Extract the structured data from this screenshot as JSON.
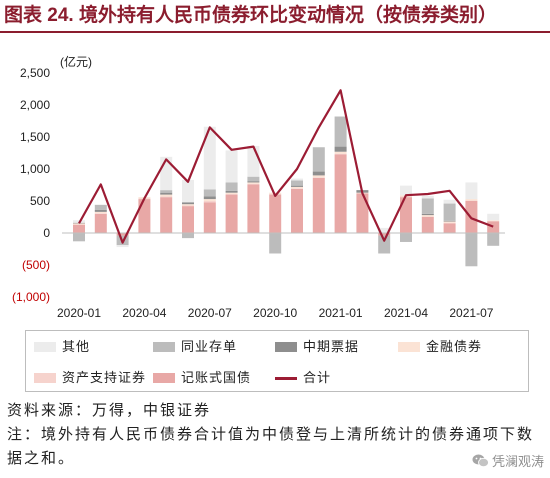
{
  "chart_data": {
    "type": "bar",
    "stacked": true,
    "title": "图表 24. 境外持有人民币债券环比变动情况（按债券类别）",
    "ylabel": "(亿元)",
    "xlabel": "",
    "x": [
      "2020-01",
      "2020-02",
      "2020-03",
      "2020-04",
      "2020-05",
      "2020-06",
      "2020-07",
      "2020-08",
      "2020-09",
      "2020-10",
      "2020-11",
      "2020-12",
      "2021-01",
      "2021-02",
      "2021-03",
      "2021-04",
      "2021-05",
      "2021-06",
      "2021-07",
      "2021-08"
    ],
    "x_tick_labels": [
      "2020-01",
      "2020-04",
      "2020-07",
      "2020-10",
      "2021-01",
      "2021-04",
      "2021-07"
    ],
    "ylim": [
      -1000,
      2500
    ],
    "y_ticks": [
      2500,
      2000,
      1500,
      1000,
      500,
      0,
      -500,
      -1000
    ],
    "y_tick_labels": [
      "2,500",
      "2,000",
      "1,500",
      "1,000",
      "500",
      "0",
      "(500)",
      "(1,000)"
    ],
    "grid": false,
    "legend": "bottom",
    "series": [
      {
        "name": "其他",
        "type": "bar",
        "color": "#ececec",
        "values": [
          40,
          0,
          -30,
          0,
          520,
          350,
          980,
          500,
          480,
          0,
          30,
          0,
          0,
          0,
          80,
          150,
          40,
          60,
          260,
          100
        ]
      },
      {
        "name": "同业存单",
        "type": "bar",
        "color": "#bcbcbc",
        "values": [
          -130,
          80,
          -150,
          0,
          40,
          -80,
          110,
          130,
          70,
          -320,
          80,
          380,
          470,
          0,
          -280,
          -140,
          240,
          270,
          -520,
          -200
        ]
      },
      {
        "name": "中期票据",
        "type": "bar",
        "color": "#8e8e8e",
        "values": [
          10,
          30,
          0,
          0,
          30,
          30,
          40,
          30,
          20,
          0,
          20,
          60,
          80,
          40,
          0,
          0,
          20,
          10,
          0,
          0
        ]
      },
      {
        "name": "金融债券",
        "type": "bar",
        "color": "#fbe3d5",
        "values": [
          20,
          20,
          0,
          20,
          30,
          20,
          30,
          20,
          20,
          20,
          20,
          30,
          30,
          10,
          0,
          20,
          20,
          20,
          20,
          10
        ]
      },
      {
        "name": "资产支持证券",
        "type": "bar",
        "color": "#f6d3cd",
        "values": [
          0,
          10,
          0,
          10,
          10,
          10,
          20,
          10,
          10,
          10,
          10,
          10,
          10,
          0,
          0,
          10,
          10,
          10,
          10,
          10
        ]
      },
      {
        "name": "记账式国债",
        "type": "bar",
        "color": "#e8a8a6",
        "values": [
          130,
          300,
          -40,
          530,
          560,
          420,
          480,
          600,
          760,
          600,
          690,
          860,
          1230,
          620,
          -40,
          560,
          250,
          150,
          500,
          180
        ]
      },
      {
        "name": "合计",
        "type": "line",
        "color": "#9c1c34",
        "values": [
          150,
          760,
          -150,
          540,
          1150,
          800,
          1650,
          1300,
          1350,
          580,
          1000,
          1650,
          2230,
          620,
          -120,
          590,
          610,
          660,
          230,
          100
        ]
      }
    ]
  },
  "footer": {
    "source": "资料来源：万得，中银证券",
    "note": "注：境外持有人民币债券合计值为中债登与上清所统计的债券通项下数据之和。"
  },
  "watermark": {
    "text": "凭澜观涛",
    "icon": "wechat-icon"
  }
}
